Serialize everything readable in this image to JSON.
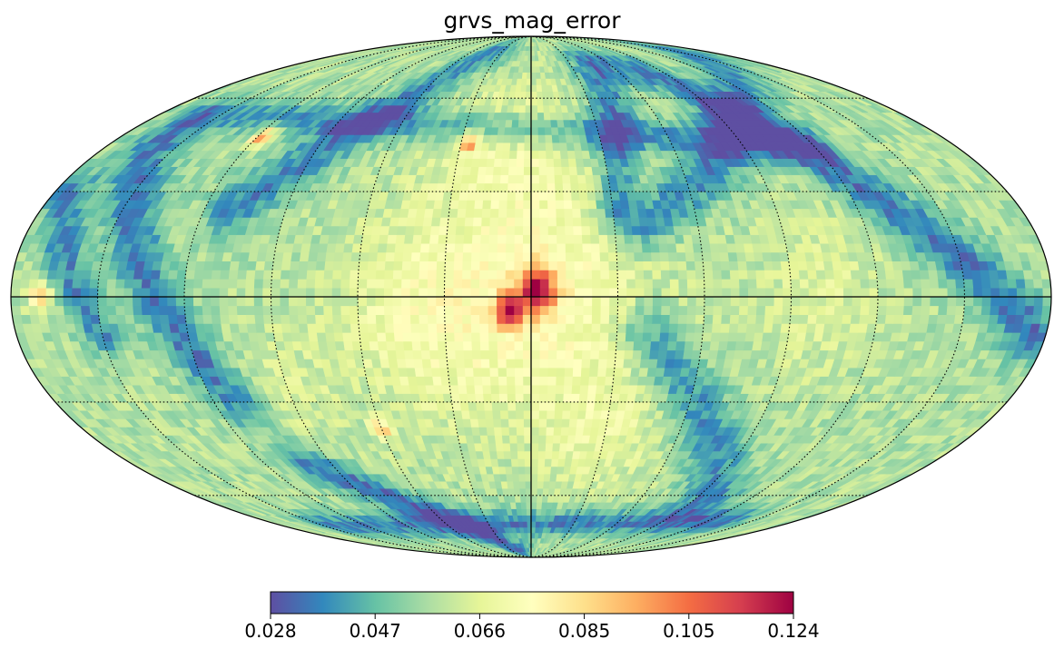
{
  "chart_data": {
    "type": "heatmap",
    "projection": "mollweide",
    "title": "grvs_mag_error",
    "colormap": "Spectral_r",
    "colorbar": {
      "min": 0.028,
      "max": 0.124,
      "ticks": [
        "0.028",
        "0.047",
        "0.066",
        "0.085",
        "0.105",
        "0.124"
      ],
      "colors": [
        "#5e4fa2",
        "#3288bd",
        "#66c2a5",
        "#abdda4",
        "#e6f598",
        "#ffffbf",
        "#fee08b",
        "#fdae61",
        "#f46d43",
        "#d53e4f",
        "#9e0142"
      ]
    },
    "graticule": {
      "meridians_deg": [
        -150,
        -120,
        -90,
        -60,
        -30,
        0,
        30,
        60,
        90,
        120,
        150
      ],
      "parallels_deg": [
        -60,
        -30,
        0,
        30,
        60
      ],
      "style": "dotted",
      "equator_and_central_meridian": "solid"
    },
    "background_level": 0.058,
    "features": [
      {
        "kind": "band",
        "lon": [
          -175,
          -80
        ],
        "lat": [
          -10,
          70
        ],
        "value": 0.035,
        "width_deg": 9
      },
      {
        "kind": "band",
        "lon": [
          -150,
          -40
        ],
        "lat": [
          80,
          20
        ],
        "value": 0.037,
        "width_deg": 8
      },
      {
        "kind": "band",
        "lon": [
          -95,
          -40
        ],
        "lat": [
          -60,
          -10
        ],
        "value": 0.038,
        "width_deg": 9
      },
      {
        "kind": "band",
        "lon": [
          -45,
          -30
        ],
        "lat": [
          75,
          25
        ],
        "value": 0.036,
        "width_deg": 7
      },
      {
        "kind": "band",
        "lon": [
          40,
          110
        ],
        "lat": [
          80,
          25
        ],
        "value": 0.037,
        "width_deg": 9
      },
      {
        "kind": "band",
        "lon": [
          110,
          160
        ],
        "lat": [
          -30,
          45
        ],
        "value": 0.036,
        "width_deg": 9
      },
      {
        "kind": "band",
        "lon": [
          150,
          175
        ],
        "lat": [
          -10,
          30
        ],
        "value": 0.038,
        "width_deg": 7
      },
      {
        "kind": "band",
        "lon": [
          -130,
          140
        ],
        "lat": [
          -70,
          -72
        ],
        "value": 0.036,
        "width_deg": 6
      },
      {
        "kind": "band",
        "lon": [
          20,
          100
        ],
        "lat": [
          -85,
          -50
        ],
        "value": 0.034,
        "width_deg": 7
      },
      {
        "kind": "band",
        "lon": [
          -120,
          160
        ],
        "lat": [
          45,
          55
        ],
        "value": 0.04,
        "width_deg": 6
      },
      {
        "kind": "blob",
        "lon": -5,
        "lat": 0,
        "value": 0.075,
        "radius_deg": 38
      },
      {
        "kind": "blob",
        "lon": 40,
        "lat": -5,
        "value": 0.071,
        "radius_deg": 28
      },
      {
        "kind": "blob",
        "lon": -100,
        "lat": 0,
        "value": 0.066,
        "radius_deg": 22
      },
      {
        "kind": "blob",
        "lon": 10,
        "lat": 45,
        "value": 0.068,
        "radius_deg": 24
      },
      {
        "kind": "blob",
        "lon": -30,
        "lat": -40,
        "value": 0.066,
        "radius_deg": 20
      },
      {
        "kind": "blob",
        "lon": 90,
        "lat": -25,
        "value": 0.064,
        "radius_deg": 18
      },
      {
        "kind": "blob",
        "lon": -2,
        "lat": 2,
        "value": 0.11,
        "radius_deg": 7
      },
      {
        "kind": "blob",
        "lon": 8,
        "lat": -4,
        "value": 0.105,
        "radius_deg": 5
      },
      {
        "kind": "blob",
        "lon": 27,
        "lat": 45,
        "value": 0.102,
        "radius_deg": 3
      },
      {
        "kind": "blob",
        "lon": 118,
        "lat": 47,
        "value": 0.104,
        "radius_deg": 3
      },
      {
        "kind": "blob",
        "lon": 170,
        "lat": 0,
        "value": 0.092,
        "radius_deg": 4
      },
      {
        "kind": "blob",
        "lon": 60,
        "lat": -38,
        "value": 0.09,
        "radius_deg": 3
      }
    ]
  }
}
